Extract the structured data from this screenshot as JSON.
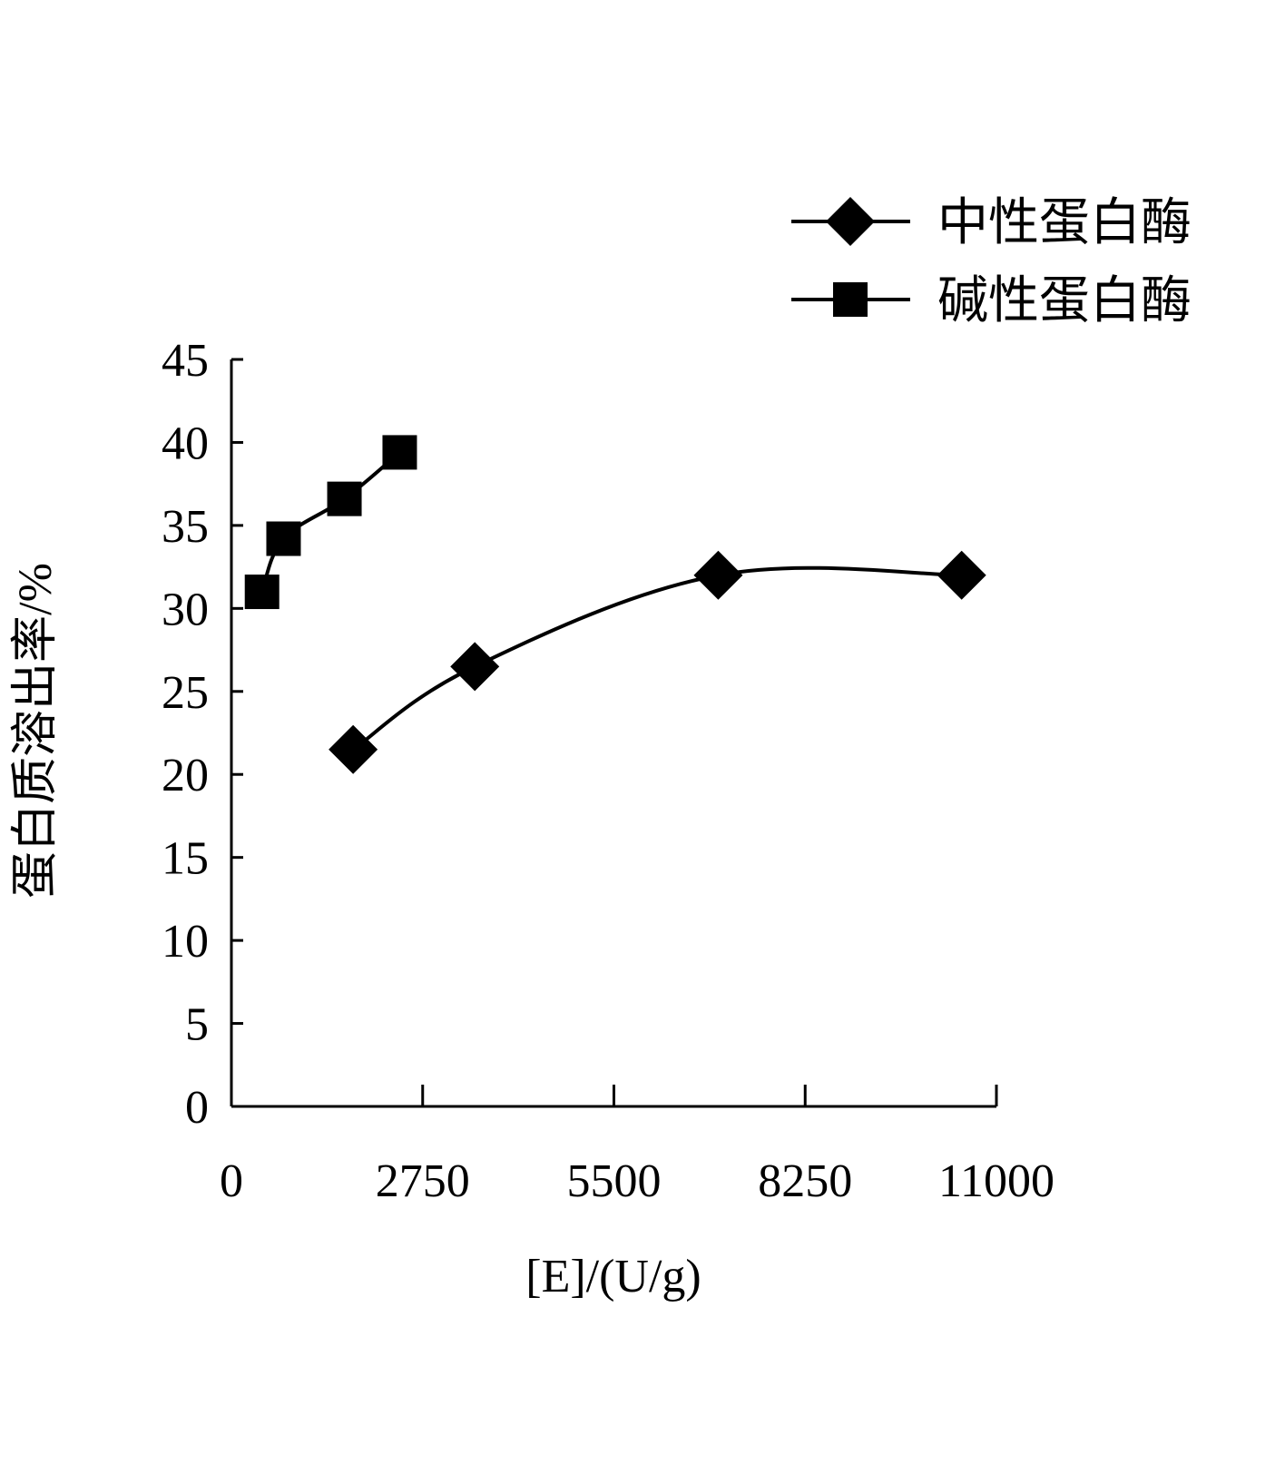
{
  "chart_data": {
    "type": "line",
    "xlabel": "[E]/(U/g)",
    "ylabel": "蛋白质溶出率/%",
    "xlim": [
      0,
      11000
    ],
    "ylim": [
      0,
      45
    ],
    "x_ticks": [
      0,
      2750,
      5500,
      8250,
      11000
    ],
    "y_ticks": [
      0,
      5,
      10,
      15,
      20,
      25,
      30,
      35,
      40,
      45
    ],
    "grid": false,
    "legend_position": "top-right",
    "series": [
      {
        "name": "中性蛋白酶",
        "marker": "diamond",
        "x": [
          1750,
          3500,
          7000,
          10500
        ],
        "y": [
          21.5,
          26.5,
          32.0,
          32.0
        ]
      },
      {
        "name": "碱性蛋白酶",
        "marker": "square",
        "x": [
          440,
          750,
          1625,
          2420
        ],
        "y": [
          31.0,
          34.2,
          36.6,
          39.4
        ]
      }
    ]
  }
}
